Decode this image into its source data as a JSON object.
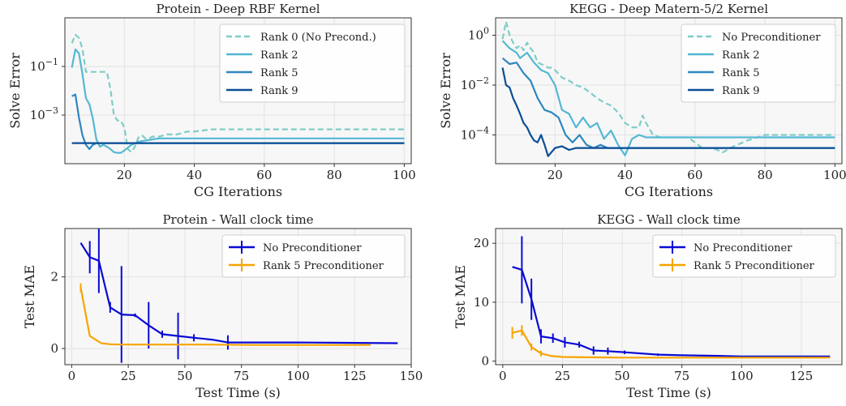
{
  "chart_data": [
    {
      "type": "line",
      "title": "Protein - Deep RBF Kernel",
      "xlabel": "CG Iterations",
      "ylabel": "Solve Error",
      "yscale": "log",
      "xlim": [
        3,
        102
      ],
      "ylim": [
        1e-05,
        10
      ],
      "xticks": [
        20,
        40,
        60,
        80,
        100
      ],
      "yticks": [
        0.1,
        0.001
      ],
      "ytick_labels": [
        "10^{-1}",
        "10^{-3}"
      ],
      "grid": true,
      "legend_position": "top-right",
      "series": [
        {
          "name": "Rank 0 (No Precond.)",
          "color": "#7fcdc7",
          "dashed": true,
          "x": [
            5,
            6,
            7,
            8,
            9,
            10,
            11,
            12,
            13,
            14,
            15,
            16,
            17,
            18,
            19,
            20,
            21,
            22,
            23,
            24,
            25,
            26,
            27,
            28,
            30,
            32,
            35,
            38,
            40,
            45,
            50,
            60,
            70,
            80,
            90,
            100
          ],
          "y": [
            0.9,
            2.0,
            1.5,
            0.55,
            0.06,
            0.06,
            0.06,
            0.06,
            0.06,
            0.06,
            0.06,
            0.012,
            0.001,
            0.0006,
            0.0006,
            0.0003,
            4e-05,
            3e-05,
            5e-05,
            0.00012,
            0.00015,
            0.00011,
            0.00011,
            0.00013,
            0.00013,
            0.00016,
            0.00016,
            0.00021,
            0.00021,
            0.00026,
            0.00026,
            0.00026,
            0.00026,
            0.00026,
            0.00026,
            0.00026
          ]
        },
        {
          "name": "Rank 2",
          "color": "#53b8d4",
          "dashed": false,
          "x": [
            5,
            6,
            7,
            8,
            9,
            10,
            11,
            12,
            13,
            14,
            15,
            16,
            17,
            18,
            19,
            20,
            22,
            24,
            26,
            28,
            30,
            35,
            40,
            50,
            60,
            70,
            80,
            90,
            100
          ],
          "y": [
            0.09,
            0.5,
            0.35,
            0.05,
            0.005,
            0.0028,
            0.0007,
            0.0001,
            5e-05,
            6e-05,
            5e-05,
            4e-05,
            3e-05,
            2.8e-05,
            2.8e-05,
            3.5e-05,
            6e-05,
            8e-05,
            9e-05,
            0.0001,
            0.00011,
            0.00011,
            0.00011,
            0.00011,
            0.00011,
            0.00011,
            0.00011,
            0.00011,
            0.00011
          ]
        },
        {
          "name": "Rank 5",
          "color": "#2e86c1",
          "dashed": false,
          "x": [
            5,
            6,
            7,
            8,
            9,
            10,
            11,
            12,
            14,
            16,
            18,
            20,
            30,
            40,
            50,
            60,
            70,
            80,
            90,
            100
          ],
          "y": [
            0.006,
            0.007,
            0.0008,
            0.00015,
            6e-05,
            4e-05,
            6e-05,
            7e-05,
            7e-05,
            7e-05,
            7e-05,
            7e-05,
            7e-05,
            7e-05,
            7e-05,
            7e-05,
            7e-05,
            7e-05,
            7e-05,
            7e-05
          ]
        },
        {
          "name": "Rank 9",
          "color": "#0b4f96",
          "dashed": false,
          "x": [
            5,
            10,
            20,
            30,
            40,
            50,
            60,
            70,
            80,
            90,
            100
          ],
          "y": [
            7e-05,
            7e-05,
            7e-05,
            7e-05,
            7e-05,
            7e-05,
            7e-05,
            7e-05,
            7e-05,
            7e-05,
            7e-05
          ]
        }
      ]
    },
    {
      "type": "line",
      "title": "KEGG - Deep Matern-5/2 Kernel",
      "xlabel": "CG Iterations",
      "ylabel": "Solve Error",
      "yscale": "log",
      "xlim": [
        3,
        102
      ],
      "ylim": [
        7e-06,
        5
      ],
      "xticks": [
        20,
        40,
        60,
        80,
        100
      ],
      "yticks": [
        1,
        0.01,
        0.0001
      ],
      "ytick_labels": [
        "10^{0}",
        "10^{-2}",
        "10^{-4}"
      ],
      "grid": true,
      "legend_position": "top-right",
      "series": [
        {
          "name": "No Preconditioner",
          "color": "#7fcdc7",
          "dashed": true,
          "x": [
            5,
            6,
            7,
            8,
            9,
            10,
            11,
            12,
            13,
            14,
            15,
            16,
            17,
            18,
            19,
            20,
            22,
            24,
            26,
            28,
            30,
            32,
            34,
            36,
            38,
            40,
            42,
            44,
            45,
            46,
            48,
            50,
            55,
            58,
            60,
            62,
            65,
            68,
            70,
            75,
            80,
            85,
            90,
            95,
            100
          ],
          "y": [
            0.7,
            3.5,
            1.0,
            0.5,
            0.3,
            0.4,
            0.25,
            0.5,
            0.3,
            0.2,
            0.08,
            0.07,
            0.06,
            0.05,
            0.05,
            0.04,
            0.02,
            0.015,
            0.01,
            0.008,
            0.005,
            0.003,
            0.002,
            0.0015,
            0.0008,
            0.0003,
            0.0002,
            0.0002,
            0.0006,
            0.0003,
            0.0001,
            8e-05,
            8e-05,
            8e-05,
            5e-05,
            3e-05,
            3e-05,
            2e-05,
            3e-05,
            6e-05,
            0.0001,
            0.0001,
            0.0001,
            0.0001,
            0.0001
          ]
        },
        {
          "name": "Rank 2",
          "color": "#53b8d4",
          "dashed": false,
          "x": [
            5,
            7,
            9,
            10,
            12,
            14,
            16,
            18,
            20,
            22,
            24,
            26,
            28,
            30,
            32,
            34,
            36,
            38,
            40,
            42,
            44,
            46,
            50,
            60,
            70,
            80,
            90,
            100
          ],
          "y": [
            0.6,
            0.3,
            0.2,
            0.12,
            0.2,
            0.08,
            0.04,
            0.03,
            0.01,
            0.001,
            0.0007,
            0.0002,
            0.0005,
            0.0002,
            0.0003,
            7e-05,
            0.00015,
            4e-05,
            1.5e-05,
            7e-05,
            0.0001,
            8e-05,
            8e-05,
            8e-05,
            8e-05,
            8e-05,
            8e-05,
            8e-05
          ]
        },
        {
          "name": "Rank 5",
          "color": "#2e86c1",
          "dashed": false,
          "x": [
            5,
            7,
            9,
            11,
            13,
            15,
            17,
            19,
            21,
            23,
            25,
            27,
            29,
            31,
            33,
            35,
            37,
            39,
            41,
            45,
            50,
            60,
            70,
            80,
            90,
            100
          ],
          "y": [
            0.12,
            0.07,
            0.08,
            0.03,
            0.015,
            0.003,
            0.001,
            0.0008,
            0.0005,
            0.0001,
            5e-05,
            0.0001,
            4e-05,
            3e-05,
            4e-05,
            3e-05,
            3e-05,
            3e-05,
            3e-05,
            3e-05,
            3e-05,
            3e-05,
            3e-05,
            3e-05,
            3e-05,
            3e-05
          ]
        },
        {
          "name": "Rank 9",
          "color": "#0b4f96",
          "dashed": false,
          "x": [
            5,
            6,
            7,
            8,
            9,
            10,
            11,
            12,
            13,
            14,
            15,
            16,
            17,
            18,
            20,
            22,
            24,
            26,
            30,
            40,
            50,
            60,
            70,
            80,
            90,
            100
          ],
          "y": [
            0.05,
            0.01,
            0.008,
            0.003,
            0.0015,
            0.0007,
            0.0003,
            0.0002,
            0.0001,
            6e-05,
            5e-05,
            0.0001,
            4e-05,
            1.4e-05,
            3e-05,
            3.5e-05,
            2.5e-05,
            3e-05,
            3e-05,
            3e-05,
            3e-05,
            3e-05,
            3e-05,
            3e-05,
            3e-05,
            3e-05
          ]
        }
      ]
    },
    {
      "type": "line",
      "title": "Protein - Wall clock time",
      "xlabel": "Test Time (s)",
      "ylabel": "Test MAE",
      "xlim": [
        -3,
        150
      ],
      "ylim": [
        -0.45,
        3.35
      ],
      "xticks": [
        0,
        25,
        50,
        75,
        100,
        125,
        150
      ],
      "yticks": [
        0,
        2
      ],
      "grid": true,
      "legend_position": "top-right",
      "series": [
        {
          "name": "No Preconditioner",
          "color": "#0a0ad6",
          "x": [
            4,
            8,
            12,
            17,
            22,
            28,
            34,
            40,
            47,
            54,
            62,
            69,
            80,
            100,
            120,
            144
          ],
          "y": [
            2.95,
            2.55,
            2.45,
            1.15,
            0.95,
            0.93,
            0.65,
            0.4,
            0.35,
            0.3,
            0.25,
            0.17,
            0.17,
            0.17,
            0.16,
            0.15
          ],
          "err": [
            0,
            0.45,
            0.9,
            0.15,
            1.35,
            0.05,
            0.65,
            0.1,
            0.65,
            0.1,
            0,
            0.2,
            0,
            0,
            0,
            0
          ]
        },
        {
          "name": "Rank 5 Preconditioner",
          "color": "#f7a400",
          "x": [
            4,
            8,
            13,
            17,
            22,
            30,
            45,
            60,
            80,
            100,
            132
          ],
          "y": [
            1.7,
            0.35,
            0.15,
            0.12,
            0.11,
            0.11,
            0.11,
            0.11,
            0.1,
            0.1,
            0.1
          ],
          "err": [
            0.12,
            0,
            0,
            0,
            0,
            0,
            0,
            0,
            0,
            0,
            0
          ]
        }
      ]
    },
    {
      "type": "line",
      "title": "KEGG - Wall clock time",
      "xlabel": "Test Time (s)",
      "ylabel": "Test MAE",
      "xlim": [
        -3,
        142
      ],
      "ylim": [
        -0.6,
        22.5
      ],
      "xticks": [
        0,
        25,
        50,
        75,
        100,
        125
      ],
      "yticks": [
        0,
        10,
        20
      ],
      "grid": true,
      "legend_position": "top-right",
      "series": [
        {
          "name": "No Preconditioner",
          "color": "#0a0ad6",
          "x": [
            4,
            8,
            12,
            16,
            21,
            26,
            32,
            38,
            44,
            51,
            65,
            75,
            90,
            100,
            120,
            137
          ],
          "y": [
            16,
            15.5,
            10.5,
            4.2,
            3.9,
            3.2,
            2.8,
            1.8,
            1.7,
            1.5,
            1.1,
            1.0,
            0.9,
            0.8,
            0.8,
            0.8
          ],
          "err": [
            0,
            5.7,
            3.5,
            1.2,
            0.8,
            0.9,
            0.5,
            0.7,
            0.6,
            0.3,
            0.2,
            0,
            0,
            0,
            0,
            0
          ]
        },
        {
          "name": "Rank 5 Preconditioner",
          "color": "#f7a400",
          "x": [
            4,
            8,
            12,
            16,
            20,
            25,
            35,
            50,
            75,
            100,
            137
          ],
          "y": [
            4.8,
            5.2,
            2.4,
            1.3,
            0.9,
            0.7,
            0.65,
            0.6,
            0.6,
            0.6,
            0.6
          ],
          "err": [
            1.0,
            0.9,
            0.6,
            0.5,
            0,
            0,
            0,
            0,
            0,
            0,
            0
          ]
        }
      ]
    }
  ]
}
